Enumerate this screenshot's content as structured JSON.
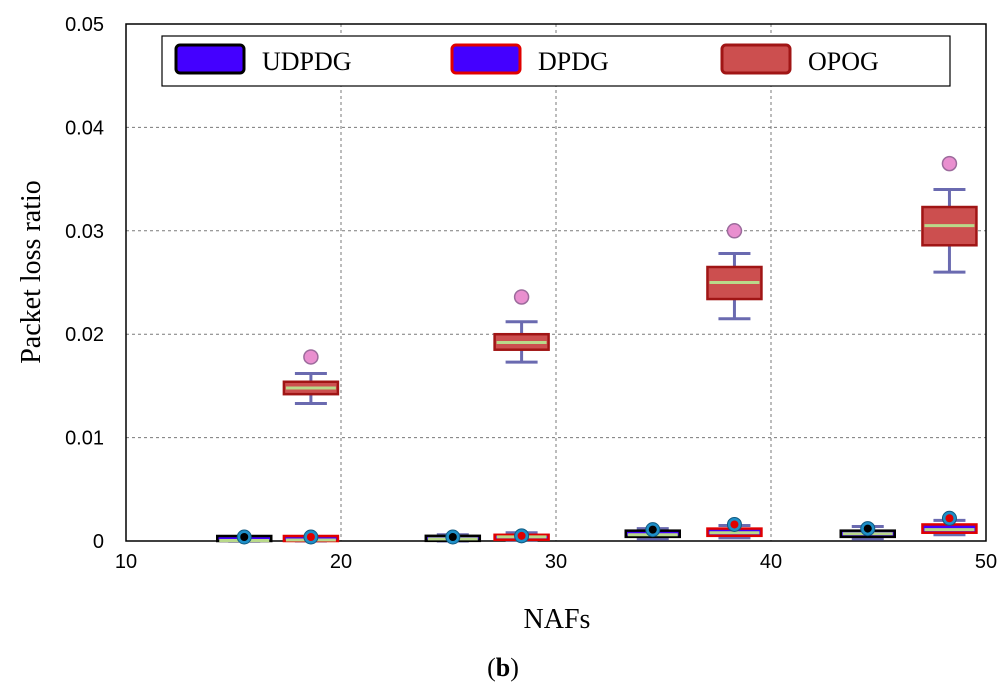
{
  "chart_data": {
    "type": "box",
    "title": "",
    "xlabel": "NAFs",
    "ylabel": "Packet loss ratio",
    "caption_open": "(",
    "caption_letter": "b",
    "caption_close": ")",
    "xlim": [
      10,
      50
    ],
    "ylim": [
      0,
      0.05
    ],
    "xticks": [
      "10",
      "20",
      "30",
      "40",
      "50"
    ],
    "yticks": [
      "0",
      "0.01",
      "0.02",
      "0.03",
      "0.04",
      "0.05"
    ],
    "grid": true,
    "legend_position": "top",
    "series": [
      {
        "name": "UDPDG",
        "fill": "#4400ff",
        "edge": "#000000",
        "boxes": [
          {
            "x": 15.5,
            "whisker_low": 0,
            "q1": 0,
            "median": 5e-05,
            "q3": 0.0001,
            "whisker_high": 0.0002,
            "outlier": 5e-05
          },
          {
            "x": 25.2,
            "whisker_low": 0,
            "q1": 0.0001,
            "median": 0.0002,
            "q3": 0.0005,
            "whisker_high": 0.0006,
            "outlier": 0.0003
          },
          {
            "x": 34.5,
            "whisker_low": 0.0002,
            "q1": 0.0004,
            "median": 0.0006,
            "q3": 0.001,
            "whisker_high": 0.0012,
            "outlier": 0.0011
          },
          {
            "x": 44.5,
            "whisker_low": 0.0002,
            "q1": 0.0004,
            "median": 0.0007,
            "q3": 0.001,
            "whisker_high": 0.0014,
            "outlier": 0.0012
          }
        ]
      },
      {
        "name": "DPDG",
        "fill": "#4400ff",
        "edge": "#e00000",
        "boxes": [
          {
            "x": 18.6,
            "whisker_low": 0,
            "q1": 5e-05,
            "median": 0.0001,
            "q3": 0.0003,
            "whisker_high": 0.0004,
            "outlier": 0.0001
          },
          {
            "x": 28.4,
            "whisker_low": 0.0001,
            "q1": 0.0002,
            "median": 0.0004,
            "q3": 0.0006,
            "whisker_high": 0.0008,
            "outlier": 0.0005
          },
          {
            "x": 38.3,
            "whisker_low": 0.0003,
            "q1": 0.0005,
            "median": 0.0008,
            "q3": 0.0012,
            "whisker_high": 0.0015,
            "outlier": 0.0016
          },
          {
            "x": 48.3,
            "whisker_low": 0.0006,
            "q1": 0.0008,
            "median": 0.0011,
            "q3": 0.0016,
            "whisker_high": 0.002,
            "outlier": 0.0022
          }
        ]
      },
      {
        "name": "OPOG",
        "fill": "#cc4f4f",
        "edge": "#a01515",
        "boxes": [
          {
            "x": 18.6,
            "whisker_low": 0.0133,
            "q1": 0.0142,
            "median": 0.0148,
            "q3": 0.0154,
            "whisker_high": 0.0162,
            "outlier": 0.0178
          },
          {
            "x": 28.4,
            "whisker_low": 0.0173,
            "q1": 0.0185,
            "median": 0.0192,
            "q3": 0.02,
            "whisker_high": 0.0212,
            "outlier": 0.0236
          },
          {
            "x": 38.3,
            "whisker_low": 0.0215,
            "q1": 0.0234,
            "median": 0.025,
            "q3": 0.0265,
            "whisker_high": 0.0278,
            "outlier": 0.03
          },
          {
            "x": 48.3,
            "whisker_low": 0.026,
            "q1": 0.0286,
            "median": 0.0305,
            "q3": 0.0323,
            "whisker_high": 0.034,
            "outlier": 0.0365
          }
        ]
      }
    ]
  }
}
